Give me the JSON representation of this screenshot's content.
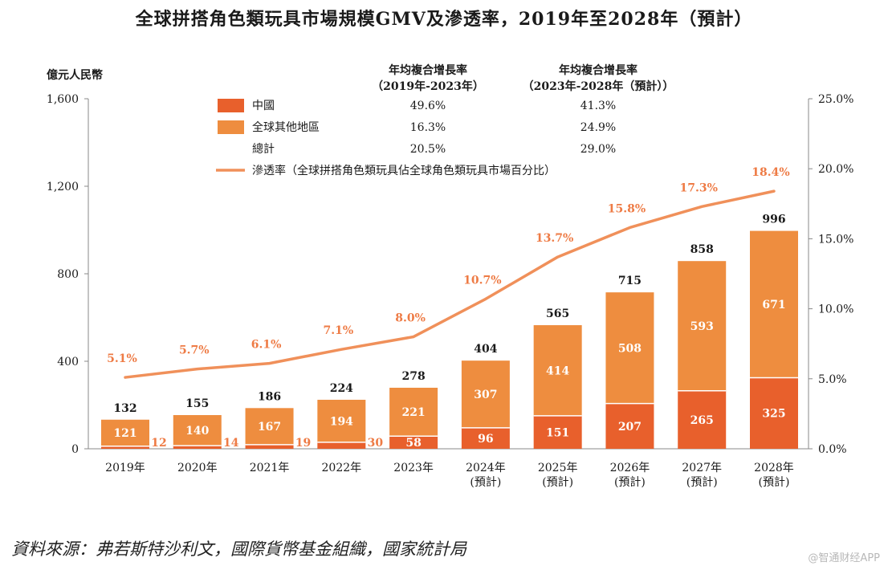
{
  "title": "全球拼搭角色類玩具市場規模GMV及滲透率，2019年至2028年（預計）",
  "source": "資料來源：弗若斯特沙利文，國際貨幣基金組織，國家統計局",
  "watermark": "@智通财经APP",
  "colors": {
    "china": "#E8602C",
    "rest": "#EE8D3F",
    "line": "#F0905A",
    "line_label": "#EE7B45",
    "axis": "#888888",
    "text": "#1a1a1a"
  },
  "chart_data": {
    "type": "bar",
    "stacked": true,
    "y_unit_label": "億元人民幣",
    "categories": [
      "2019年",
      "2020年",
      "2021年",
      "2022年",
      "2023年",
      "2024年\n(預計)",
      "2025年\n(預計)",
      "2026年\n(預計)",
      "2027年\n(預計)",
      "2028年\n(預計)"
    ],
    "series": [
      {
        "name": "中國",
        "values": [
          12,
          14,
          19,
          30,
          58,
          96,
          151,
          207,
          265,
          325
        ]
      },
      {
        "name": "全球其他地區",
        "values": [
          121,
          140,
          167,
          194,
          221,
          307,
          414,
          508,
          593,
          671
        ]
      }
    ],
    "totals": [
      132,
      155,
      186,
      224,
      278,
      404,
      565,
      715,
      858,
      996
    ],
    "ylim": [
      0,
      1600
    ],
    "yticks": [
      "0",
      "400",
      "800",
      "1,200",
      "1,600"
    ],
    "line_series": {
      "name": "滲透率（全球拼搭角色類玩具佔全球角色類玩具市場百分比）",
      "values": [
        5.1,
        5.7,
        6.1,
        7.1,
        8.0,
        10.7,
        13.7,
        15.8,
        17.3,
        18.4
      ],
      "labels": [
        "5.1%",
        "5.7%",
        "6.1%",
        "7.1%",
        "8.0%",
        "10.7%",
        "13.7%",
        "15.8%",
        "17.3%",
        "18.4%"
      ]
    },
    "y2lim": [
      0,
      25
    ],
    "y2ticks": [
      "0.0%",
      "5.0%",
      "10.0%",
      "15.0%",
      "20.0%",
      "25.0%"
    ],
    "legend": {
      "header1": [
        "年均複合增長率",
        "（2019年-2023年）"
      ],
      "header2": [
        "年均複合增長率",
        "（2023年-2028年（預計））"
      ],
      "rows": [
        {
          "label": "中國",
          "cagr1": "49.6%",
          "cagr2": "41.3%"
        },
        {
          "label": "全球其他地區",
          "cagr1": "16.3%",
          "cagr2": "24.9%"
        },
        {
          "label": "總計",
          "cagr1": "20.5%",
          "cagr2": "29.0%"
        }
      ],
      "line_label": "滲透率（全球拼搭角色類玩具佔全球角色類玩具市場百分比）"
    }
  }
}
